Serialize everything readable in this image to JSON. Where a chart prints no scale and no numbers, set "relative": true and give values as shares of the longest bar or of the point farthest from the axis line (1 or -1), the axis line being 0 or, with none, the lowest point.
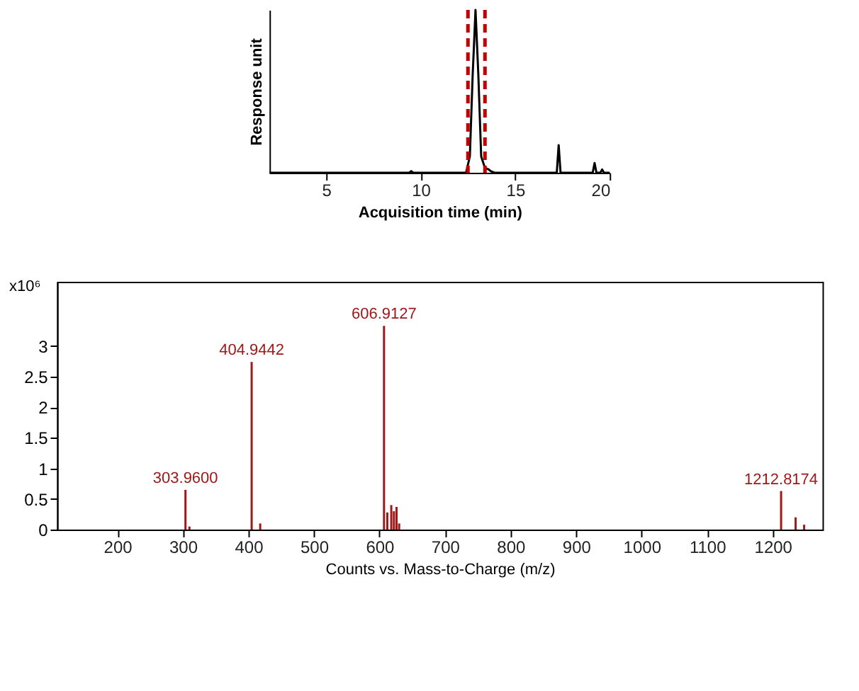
{
  "chart_data": [
    {
      "type": "line",
      "relative": true,
      "xlabel": "Acquisition time (min)",
      "ylabel": "Response unit",
      "xlim": [
        2,
        20
      ],
      "xticks": [
        5,
        10,
        15,
        20
      ],
      "grid": false,
      "legend": false,
      "marker": "none",
      "series": [
        {
          "color": "#000000",
          "x": [
            2,
            9.4,
            9.5,
            9.6,
            12.4,
            12.6,
            12.75,
            12.9,
            13.05,
            13.2,
            13.4,
            13.6,
            13.7,
            13.9,
            17.2,
            17.3,
            17.4,
            19.1,
            19.2,
            19.3,
            19.5,
            19.6,
            19.7,
            20
          ],
          "values": [
            0,
            0,
            0.01,
            0,
            0,
            0.1,
            0.6,
            1,
            0.6,
            0.1,
            0.03,
            0.02,
            0.01,
            0,
            0,
            0.17,
            0,
            0,
            0.06,
            0,
            0,
            0.02,
            0,
            0
          ]
        }
      ],
      "ref_lines": [
        {
          "axis": "x",
          "value": 12.5,
          "color": "#c00000",
          "line_style": "dashed"
        },
        {
          "axis": "x",
          "value": 13.4,
          "color": "#c00000",
          "line_style": "dashed"
        }
      ]
    },
    {
      "type": "bar",
      "xlabel": "Counts vs. Mass-to-Charge (m/z)",
      "ylabel": "x10⁶",
      "xlim": [
        108,
        1276
      ],
      "xticks": [
        200,
        300,
        400,
        500,
        600,
        700,
        800,
        900,
        1000,
        1100,
        1200
      ],
      "ylim": [
        0,
        4.05
      ],
      "yticks": [
        0,
        0.5,
        1,
        1.5,
        2,
        2.5,
        3
      ],
      "grid": false,
      "legend": false,
      "series": [
        {
          "color": "#a01818",
          "x": [
            303.96,
            310,
            404.9442,
            418,
            606.9127,
            612,
            618,
            622,
            626,
            630,
            1212.8174,
            1235,
            1248
          ],
          "values": [
            0.65,
            0.05,
            2.74,
            0.1,
            3.33,
            0.28,
            0.4,
            0.3,
            0.37,
            0.1,
            0.63,
            0.2,
            0.08
          ]
        }
      ],
      "annotations": [
        {
          "text": "303.9600",
          "x": 303.96,
          "y": 0.65
        },
        {
          "text": "404.9442",
          "x": 404.9442,
          "y": 2.74
        },
        {
          "text": "606.9127",
          "x": 606.9127,
          "y": 3.33
        },
        {
          "text": "1212.8174",
          "x": 1212.8174,
          "y": 0.63
        }
      ]
    }
  ]
}
